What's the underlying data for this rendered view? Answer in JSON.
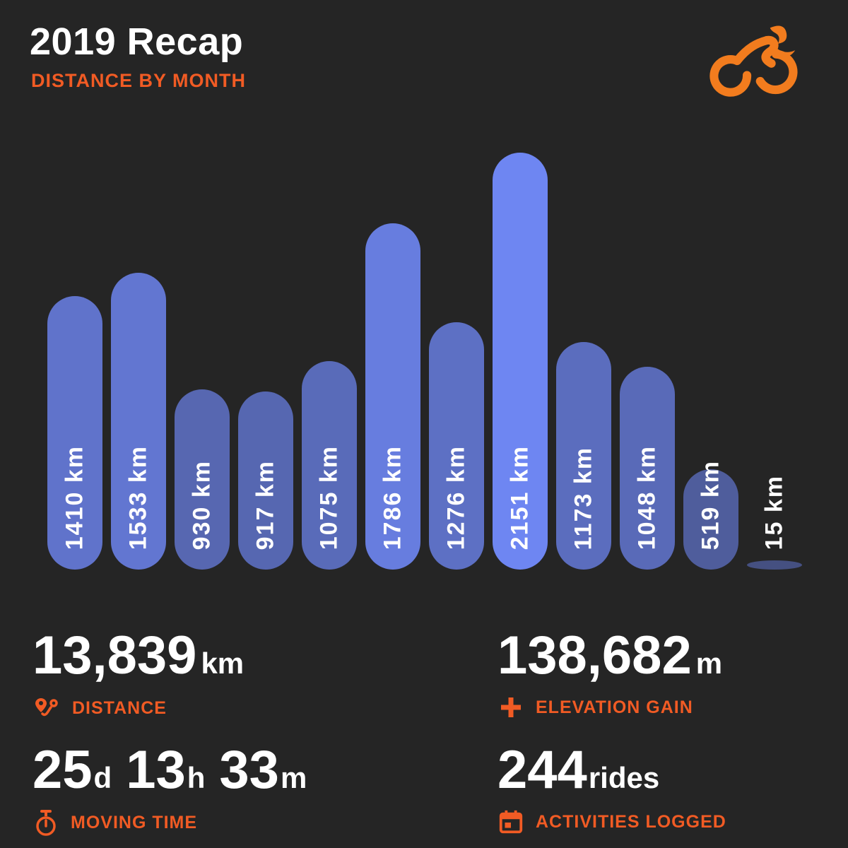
{
  "header": {
    "title": "2019 Recap",
    "subtitle": "DISTANCE BY MONTH"
  },
  "logo": "cyclist-logo",
  "chart_data": {
    "type": "bar",
    "title": "DISTANCE BY MONTH",
    "unit": "km",
    "values": [
      1410,
      1533,
      930,
      917,
      1075,
      1786,
      1276,
      2151,
      1173,
      1048,
      519,
      15
    ],
    "labels": [
      "1410 km",
      "1533 km",
      "930 km",
      "917 km",
      "1075 km",
      "1786 km",
      "1276 km",
      "2151 km",
      "1173 km",
      "1048 km",
      "519 km",
      "15 km"
    ],
    "bar_colors": [
      "#6073cb",
      "#6276d1",
      "#5767b1",
      "#5667b1",
      "#596bb9",
      "#677ddf",
      "#5d70c4",
      "#6e86f2",
      "#5b6dbe",
      "#596ab8",
      "#4f5d9c",
      "#455081"
    ],
    "ylim": [
      0,
      2151
    ],
    "x_tick_labels": [],
    "grid": "off",
    "legend": "none",
    "bar_label_color": "#ffffff"
  },
  "stats": {
    "distance": {
      "value": "13,839",
      "unit": "km",
      "label": "DISTANCE",
      "icon": "route-icon"
    },
    "elevation": {
      "value": "138,682",
      "unit": "m",
      "label": "ELEVATION GAIN",
      "icon": "plus-icon"
    },
    "moving_time": {
      "d": "25",
      "d_unit": "d",
      "h": "13",
      "h_unit": "h",
      "m": "33",
      "m_unit": "m",
      "label": "MOVING TIME",
      "icon": "stopwatch-icon"
    },
    "activities": {
      "value": "244",
      "unit": "rides",
      "label": "ACTIVITIES LOGGED",
      "icon": "calendar-icon"
    }
  },
  "colors": {
    "background": "#252525",
    "accent_orange": "#f15b24",
    "logo_orange": "#f27c1e",
    "bar_max_blue": "#6e86f2",
    "text_white": "#ffffff"
  }
}
